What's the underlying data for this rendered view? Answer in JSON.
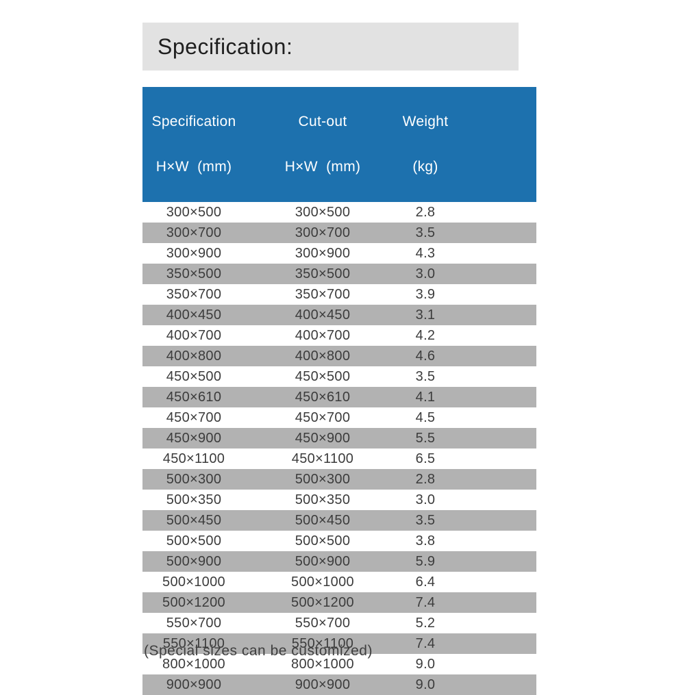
{
  "title_banner": {
    "text": "Specification:",
    "background": "#e2e2e2",
    "text_color": "#1f1f1f"
  },
  "table": {
    "header": {
      "background": "#1d71ae",
      "text_color": "#ffffff",
      "columns": [
        {
          "line1": "Specification",
          "line2": "H×W  (mm)"
        },
        {
          "line1": "Cut-out",
          "line2": "H×W  (mm)"
        },
        {
          "line1": "Weight",
          "line2": "(kg)"
        }
      ]
    },
    "row_colors": {
      "odd": "#ffffff",
      "even": "#b2b2b2"
    },
    "rows": [
      {
        "specification": "300×500",
        "cut_out": "300×500",
        "weight": "2.8"
      },
      {
        "specification": "300×700",
        "cut_out": "300×700",
        "weight": "3.5"
      },
      {
        "specification": "300×900",
        "cut_out": "300×900",
        "weight": "4.3"
      },
      {
        "specification": "350×500",
        "cut_out": "350×500",
        "weight": "3.0"
      },
      {
        "specification": "350×700",
        "cut_out": "350×700",
        "weight": "3.9"
      },
      {
        "specification": "400×450",
        "cut_out": "400×450",
        "weight": "3.1"
      },
      {
        "specification": "400×700",
        "cut_out": "400×700",
        "weight": "4.2"
      },
      {
        "specification": "400×800",
        "cut_out": "400×800",
        "weight": "4.6"
      },
      {
        "specification": "450×500",
        "cut_out": "450×500",
        "weight": "3.5"
      },
      {
        "specification": "450×610",
        "cut_out": "450×610",
        "weight": "4.1"
      },
      {
        "specification": "450×700",
        "cut_out": "450×700",
        "weight": "4.5"
      },
      {
        "specification": "450×900",
        "cut_out": "450×900",
        "weight": "5.5"
      },
      {
        "specification": "450×1100",
        "cut_out": "450×1100",
        "weight": "6.5"
      },
      {
        "specification": "500×300",
        "cut_out": "500×300",
        "weight": "2.8"
      },
      {
        "specification": "500×350",
        "cut_out": "500×350",
        "weight": "3.0"
      },
      {
        "specification": "500×450",
        "cut_out": "500×450",
        "weight": "3.5"
      },
      {
        "specification": "500×500",
        "cut_out": "500×500",
        "weight": "3.8"
      },
      {
        "specification": "500×900",
        "cut_out": "500×900",
        "weight": "5.9"
      },
      {
        "specification": "500×1000",
        "cut_out": "500×1000",
        "weight": "6.4"
      },
      {
        "specification": "500×1200",
        "cut_out": "500×1200",
        "weight": "7.4"
      },
      {
        "specification": "550×700",
        "cut_out": "550×700",
        "weight": "5.2"
      },
      {
        "specification": "550×1100",
        "cut_out": "550×1100",
        "weight": "7.4"
      },
      {
        "specification": "800×1000",
        "cut_out": "800×1000",
        "weight": "9.0"
      },
      {
        "specification": "900×900",
        "cut_out": "900×900",
        "weight": "9.0"
      }
    ]
  },
  "footer": {
    "text": "(Special sizes can be customized)"
  }
}
